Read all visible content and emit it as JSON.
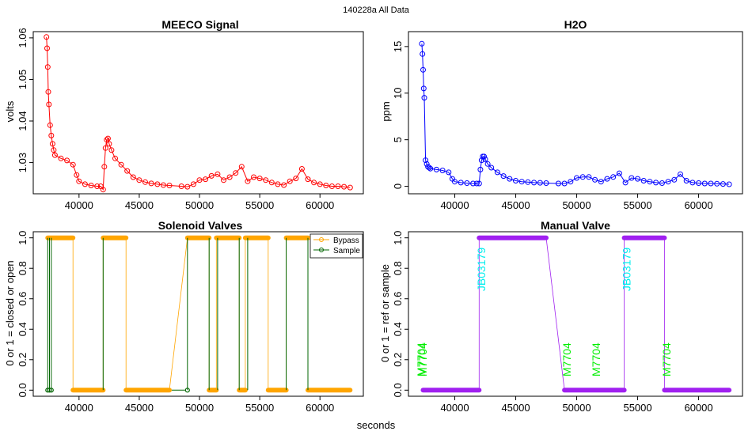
{
  "figure": {
    "title": "140228a   All Data",
    "xlabel": "seconds"
  },
  "chart_data": [
    {
      "id": "meeco",
      "type": "scatter",
      "title": "MEECO Signal",
      "xlabel": "",
      "ylabel": "volts",
      "xlim": [
        36200,
        63600
      ],
      "ylim": [
        1.0225,
        1.0615
      ],
      "xticks": [
        40000,
        45000,
        50000,
        55000,
        60000
      ],
      "yticks": [
        1.03,
        1.04,
        1.05,
        1.06
      ],
      "ytick_labels": [
        "1.03",
        "1.04",
        "1.05",
        "1.06"
      ],
      "color": "#ff0000",
      "series": [
        {
          "name": "MEECO",
          "x": [
            37300,
            37350,
            37400,
            37450,
            37500,
            37600,
            37700,
            37800,
            37900,
            38000,
            38500,
            39000,
            39500,
            39800,
            40000,
            40500,
            41000,
            41500,
            41800,
            42000,
            42100,
            42200,
            42300,
            42400,
            42500,
            42700,
            43000,
            43500,
            44000,
            44500,
            45000,
            45500,
            46000,
            46500,
            47000,
            47500,
            48500,
            49000,
            49500,
            50000,
            50500,
            51000,
            51500,
            52000,
            52500,
            53000,
            53500,
            54000,
            54500,
            55000,
            55500,
            56000,
            56500,
            57000,
            57500,
            58000,
            58500,
            59000,
            59500,
            60000,
            60500,
            61000,
            61500,
            62000,
            62500
          ],
          "y": [
            1.0602,
            1.0575,
            1.053,
            1.047,
            1.044,
            1.039,
            1.0365,
            1.0345,
            1.033,
            1.0318,
            1.031,
            1.0305,
            1.0295,
            1.027,
            1.0255,
            1.0248,
            1.0245,
            1.0243,
            1.0243,
            1.0235,
            1.029,
            1.0335,
            1.0355,
            1.0358,
            1.0345,
            1.033,
            1.031,
            1.0295,
            1.028,
            1.0265,
            1.0258,
            1.0253,
            1.025,
            1.0248,
            1.0246,
            1.0245,
            1.0243,
            1.0242,
            1.0248,
            1.0258,
            1.026,
            1.0268,
            1.0272,
            1.0258,
            1.0265,
            1.0275,
            1.029,
            1.0255,
            1.0265,
            1.0262,
            1.0258,
            1.0252,
            1.0248,
            1.0246,
            1.0255,
            1.0262,
            1.0285,
            1.026,
            1.0252,
            1.0248,
            1.0245,
            1.0243,
            1.0243,
            1.0242,
            1.024
          ]
        }
      ]
    },
    {
      "id": "h2o",
      "type": "scatter",
      "title": "H2O",
      "xlabel": "",
      "ylabel": "ppm",
      "xlim": [
        36200,
        63600
      ],
      "ylim": [
        -0.8,
        16.6
      ],
      "xticks": [
        40000,
        45000,
        50000,
        55000,
        60000
      ],
      "yticks": [
        0,
        5,
        10,
        15
      ],
      "ytick_labels": [
        "0",
        "5",
        "10",
        "15"
      ],
      "color": "#0000ff",
      "series": [
        {
          "name": "H2O",
          "x": [
            37300,
            37350,
            37400,
            37450,
            37500,
            37600,
            37700,
            37800,
            37900,
            38000,
            38500,
            39000,
            39500,
            39800,
            40000,
            40500,
            41000,
            41500,
            41800,
            42000,
            42100,
            42200,
            42300,
            42400,
            42500,
            42700,
            43000,
            43500,
            44000,
            44500,
            45000,
            45500,
            46000,
            46500,
            47000,
            47500,
            48500,
            49000,
            49500,
            50000,
            50500,
            51000,
            51500,
            52000,
            52500,
            53000,
            53500,
            54000,
            54500,
            55000,
            55500,
            56000,
            56500,
            57000,
            57500,
            58000,
            58500,
            59000,
            59500,
            60000,
            60500,
            61000,
            61500,
            62000,
            62500
          ],
          "y": [
            15.3,
            14.2,
            12.5,
            10.5,
            9.5,
            2.8,
            2.4,
            2.1,
            2.0,
            1.9,
            1.8,
            1.7,
            1.5,
            0.8,
            0.5,
            0.4,
            0.35,
            0.3,
            0.3,
            0.3,
            1.8,
            2.8,
            3.2,
            3.2,
            2.9,
            2.4,
            2.0,
            1.5,
            1.1,
            0.8,
            0.6,
            0.5,
            0.45,
            0.4,
            0.38,
            0.35,
            0.3,
            0.3,
            0.5,
            0.9,
            1.0,
            1.0,
            0.7,
            0.5,
            0.8,
            1.0,
            1.4,
            0.4,
            0.9,
            0.8,
            0.6,
            0.5,
            0.4,
            0.35,
            0.5,
            0.7,
            1.3,
            0.6,
            0.4,
            0.35,
            0.3,
            0.3,
            0.28,
            0.25,
            0.22
          ]
        }
      ]
    },
    {
      "id": "valves",
      "type": "line",
      "title": "Solenoid Valves",
      "xlabel": "",
      "ylabel": "0 or 1 = closed or open",
      "xlim": [
        36200,
        63600
      ],
      "ylim": [
        -0.04,
        1.04
      ],
      "xticks": [
        40000,
        45000,
        50000,
        55000,
        60000
      ],
      "yticks": [
        0,
        0.2,
        0.4,
        0.6,
        0.8,
        1.0
      ],
      "ytick_labels": [
        "0.0",
        "0.2",
        "0.4",
        "0.6",
        "0.8",
        "1.0"
      ],
      "legend": {
        "position": "top-right",
        "entries": [
          "Bypass",
          "Sample"
        ]
      },
      "series": [
        {
          "name": "Bypass",
          "color": "#ffa500",
          "segments": [
            {
              "value": 1,
              "x0": 37400,
              "x1": 39500
            },
            {
              "value": 0,
              "x0": 39500,
              "x1": 42000
            },
            {
              "value": 1,
              "x0": 42000,
              "x1": 43900
            },
            {
              "value": 0,
              "x0": 43900,
              "x1": 47500
            },
            {
              "value": 1,
              "x0": 49000,
              "x1": 50800
            },
            {
              "value": 0,
              "x0": 50800,
              "x1": 51400
            },
            {
              "value": 1,
              "x0": 51400,
              "x1": 53300
            },
            {
              "value": 0,
              "x0": 53300,
              "x1": 53800
            },
            {
              "value": 1,
              "x0": 53800,
              "x1": 55700
            },
            {
              "value": 0,
              "x0": 55700,
              "x1": 57200
            },
            {
              "value": 1,
              "x0": 57200,
              "x1": 59000
            },
            {
              "value": 0,
              "x0": 59000,
              "x1": 62500
            }
          ]
        },
        {
          "name": "Sample",
          "color": "#006400",
          "spikes": [
            37400,
            37550,
            37700,
            42000,
            49000,
            50800,
            51500,
            53300,
            54000,
            57200,
            59000
          ],
          "zero_points": [
            37400,
            37550,
            37700,
            49000
          ]
        }
      ]
    },
    {
      "id": "manual",
      "type": "line",
      "title": "Manual Valve",
      "xlabel": "",
      "ylabel": "0 or 1 = ref or sample",
      "xlim": [
        36200,
        63600
      ],
      "ylim": [
        -0.04,
        1.04
      ],
      "xticks": [
        40000,
        45000,
        50000,
        55000,
        60000
      ],
      "yticks": [
        0,
        0.2,
        0.4,
        0.6,
        0.8,
        1.0
      ],
      "ytick_labels": [
        "0.0",
        "0.2",
        "0.4",
        "0.6",
        "0.8",
        "1.0"
      ],
      "color": "#a020f0",
      "series": [
        {
          "name": "Manual",
          "segments": [
            {
              "value": 0,
              "x0": 37400,
              "x1": 42000
            },
            {
              "value": 1,
              "x0": 42000,
              "x1": 47500
            },
            {
              "value": 0,
              "x0": 49000,
              "x1": 53900
            },
            {
              "value": 1,
              "x0": 53900,
              "x1": 57200
            },
            {
              "value": 0,
              "x0": 57200,
              "x1": 62500
            }
          ]
        }
      ],
      "annotations": [
        {
          "text": "M7704",
          "x": 37550,
          "y": 0.09,
          "color": "#00ee00"
        },
        {
          "text": "M7704",
          "x": 37700,
          "y": 0.09,
          "color": "#00ee00"
        },
        {
          "text": "JB03179",
          "x": 42500,
          "y": 0.65,
          "color": "#00eeee"
        },
        {
          "text": "M7704",
          "x": 49500,
          "y": 0.09,
          "color": "#00ee00"
        },
        {
          "text": "M7704",
          "x": 51900,
          "y": 0.09,
          "color": "#00ee00"
        },
        {
          "text": "JB03179",
          "x": 54400,
          "y": 0.65,
          "color": "#00eeee"
        },
        {
          "text": "M7704",
          "x": 57700,
          "y": 0.09,
          "color": "#00ee00"
        }
      ]
    }
  ]
}
